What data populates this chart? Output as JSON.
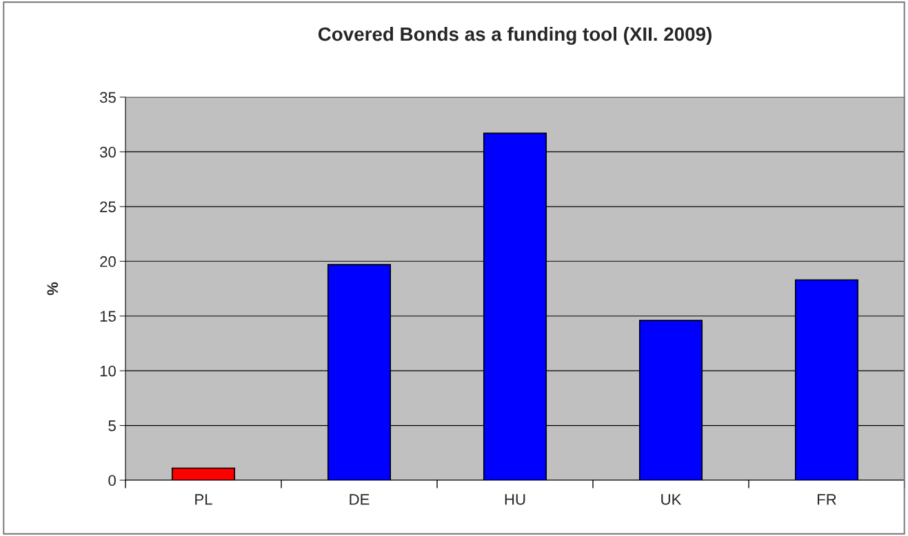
{
  "chart_data": {
    "type": "bar",
    "title": "Covered Bonds as a funding tool (XII. 2009)",
    "ylabel": "%",
    "categories": [
      "PL",
      "DE",
      "HU",
      "UK",
      "FR"
    ],
    "values": [
      1.1,
      19.7,
      31.7,
      14.6,
      18.3
    ],
    "colors": [
      "#ff0000",
      "#0000ff",
      "#0000ff",
      "#0000ff",
      "#0000ff"
    ],
    "ylim": [
      0,
      35
    ],
    "yticks": [
      0,
      5,
      10,
      15,
      20,
      25,
      30,
      35
    ],
    "grid": "y"
  }
}
